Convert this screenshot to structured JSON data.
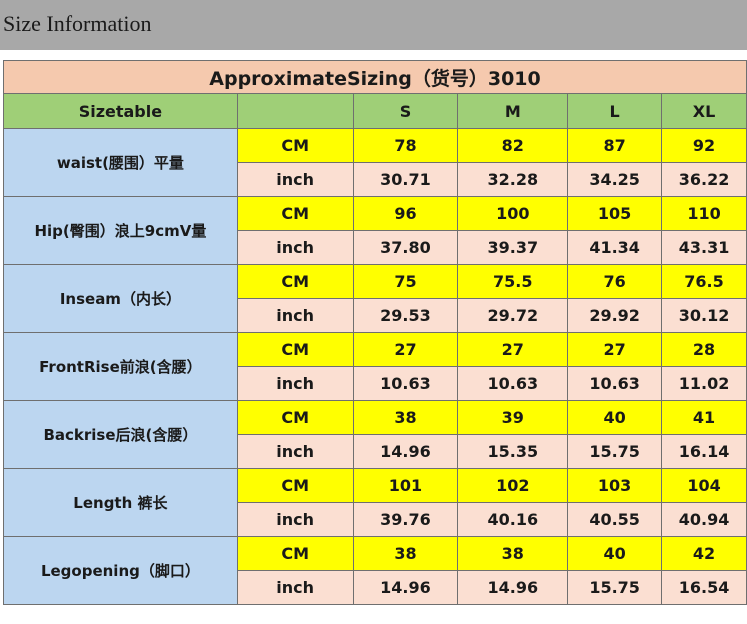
{
  "page": {
    "title": "Size Information"
  },
  "table": {
    "title": "ApproximateSizing（货号）3010",
    "header": [
      "Sizetable",
      "",
      "S",
      "M",
      "L",
      "XL"
    ],
    "measurements": [
      {
        "label": "waist(腰围）平量",
        "cm_unit": "CM",
        "cm": [
          "78",
          "82",
          "87",
          "92"
        ],
        "inch_unit": "inch",
        "inch": [
          "30.71",
          "32.28",
          "34.25",
          "36.22"
        ]
      },
      {
        "label": "Hip(臀围）浪上9cmV量",
        "cm_unit": "CM",
        "cm": [
          "96",
          "100",
          "105",
          "110"
        ],
        "inch_unit": "inch",
        "inch": [
          "37.80",
          "39.37",
          "41.34",
          "43.31"
        ]
      },
      {
        "label": "Inseam（内长）",
        "cm_unit": "CM",
        "cm": [
          "75",
          "75.5",
          "76",
          "76.5"
        ],
        "inch_unit": "inch",
        "inch": [
          "29.53",
          "29.72",
          "29.92",
          "30.12"
        ]
      },
      {
        "label": "FrontRise前浪(含腰）",
        "cm_unit": "CM",
        "cm": [
          "27",
          "27",
          "27",
          "28"
        ],
        "inch_unit": "inch",
        "inch": [
          "10.63",
          "10.63",
          "10.63",
          "11.02"
        ]
      },
      {
        "label": "Backrise后浪(含腰）",
        "cm_unit": "CM",
        "cm": [
          "38",
          "39",
          "40",
          "41"
        ],
        "inch_unit": "inch",
        "inch": [
          "14.96",
          "15.35",
          "15.75",
          "16.14"
        ]
      },
      {
        "label": "Length 裤长",
        "cm_unit": "CM",
        "cm": [
          "101",
          "102",
          "103",
          "104"
        ],
        "inch_unit": "inch",
        "inch": [
          "39.76",
          "40.16",
          "40.55",
          "40.94"
        ]
      },
      {
        "label": "Legopening（脚口）",
        "cm_unit": "CM",
        "cm": [
          "38",
          "38",
          "40",
          "42"
        ],
        "inch_unit": "inch",
        "inch": [
          "14.96",
          "14.96",
          "15.75",
          "16.54"
        ]
      }
    ]
  }
}
